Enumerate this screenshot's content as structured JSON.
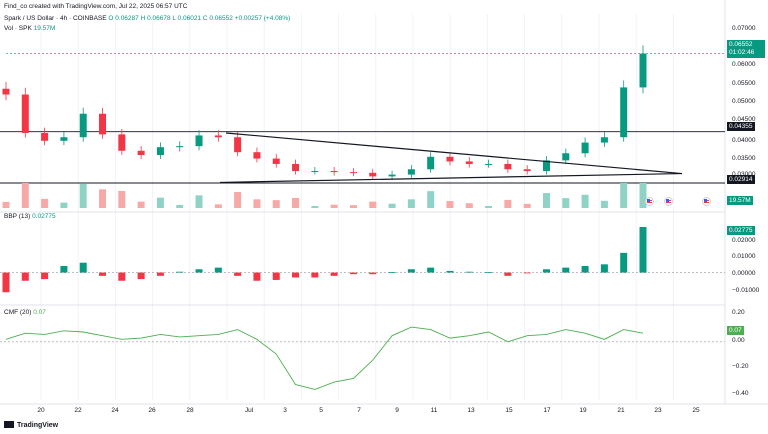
{
  "credit": "Find_co created with TradingView.com, Jul 22, 2025 06:57 UTC",
  "header": {
    "symbol": "Spark / US Dollar · 4h · COINBASE",
    "ohlc": "O 0.06287  H 0.06678  L 0.06021  C 0.06552  +0.00257 (+4.08%)",
    "vol_label": "Vol · SPK",
    "vol_value": "19.57M"
  },
  "price_tag": {
    "price": "0.06552",
    "countdown": "01:02:46"
  },
  "level_tags": {
    "upper": "0.04355",
    "lower": "0.02914"
  },
  "volume_tag": "19.57M",
  "bbp": {
    "label": "BBP (13)",
    "value": "0.02775"
  },
  "cmf": {
    "label": "CMF (20)",
    "value": "0.07"
  },
  "price_axis": [
    "0.07000",
    "0.06000",
    "0.05500",
    "0.05000",
    "0.04500",
    "0.04000",
    "0.03500",
    "0.03000"
  ],
  "bbp_axis": [
    "0.02000",
    "0.01000",
    "0.00000",
    "−0.01000"
  ],
  "cmf_axis": [
    "0.20",
    "0.00",
    "−0.20",
    "−0.40"
  ],
  "x_axis": [
    "20",
    "22",
    "24",
    "26",
    "28",
    "Jul",
    "3",
    "5",
    "7",
    "9",
    "11",
    "13",
    "15",
    "17",
    "19",
    "21",
    "23",
    "25"
  ],
  "brand": "TradingView",
  "colors": {
    "up": "#089981",
    "down": "#f23645",
    "cmf": "#4caf50",
    "line": "#131722"
  },
  "chart_data": [
    {
      "type": "candlestick",
      "title": "Spark / US Dollar · 4h · COINBASE",
      "ylim": [
        0.0283,
        0.0755
      ],
      "series": [
        {
          "name": "SPK",
          "x": [
            "Jun 19",
            "Jun 20",
            "Jun 21",
            "Jun 22",
            "Jun 23",
            "Jun 24",
            "Jun 25",
            "Jun 26",
            "Jun 27",
            "Jun 28",
            "Jun 29",
            "Jun 30",
            "Jul 1",
            "Jul 2",
            "Jul 3",
            "Jul 4",
            "Jul 5",
            "Jul 6",
            "Jul 7",
            "Jul 8",
            "Jul 9",
            "Jul 10",
            "Jul 11",
            "Jul 12",
            "Jul 13",
            "Jul 14",
            "Jul 15",
            "Jul 16",
            "Jul 17",
            "Jul 18",
            "Jul 19",
            "Jul 20",
            "Jul 21",
            "Jul 22"
          ],
          "close": [
            0.054,
            0.0432,
            0.041,
            0.042,
            0.0486,
            0.0428,
            0.0382,
            0.037,
            0.0392,
            0.0395,
            0.0425,
            0.042,
            0.0378,
            0.036,
            0.0345,
            0.0325,
            0.0325,
            0.0322,
            0.032,
            0.031,
            0.0315,
            0.033,
            0.0365,
            0.0352,
            0.0345,
            0.0345,
            0.033,
            0.0325,
            0.0355,
            0.0375,
            0.0405,
            0.042,
            0.056,
            0.0655
          ]
        }
      ],
      "levels": [
        0.04355,
        0.02914
      ]
    },
    {
      "type": "bar",
      "title": "Vol · SPK",
      "series": [
        {
          "name": "Vol · SPK",
          "last": "19.57M"
        }
      ]
    },
    {
      "type": "bar",
      "title": "BBP (13)",
      "ylim": [
        -0.0155,
        0.032
      ],
      "series": [
        {
          "name": "BBP (13)",
          "values": [
            -0.012,
            -0.005,
            -0.004,
            0.004,
            0.006,
            -0.002,
            -0.005,
            -0.004,
            -0.002,
            0.0005,
            0.002,
            0.003,
            -0.002,
            -0.005,
            -0.0045,
            -0.003,
            -0.003,
            -0.002,
            -0.001,
            -0.001,
            0.0003,
            0.002,
            0.003,
            0.001,
            0.0005,
            0.0002,
            -0.002,
            -0.0005,
            0.002,
            0.003,
            0.004,
            0.005,
            0.012,
            0.02775
          ]
        }
      ]
    },
    {
      "type": "line",
      "title": "CMF (20)",
      "ylim": [
        -0.46,
        0.26
      ],
      "series": [
        {
          "name": "CMF (20)",
          "values": [
            0.02,
            0.07,
            0.06,
            0.09,
            0.08,
            0.05,
            0.02,
            0.03,
            0.06,
            0.04,
            0.05,
            0.06,
            0.1,
            0.02,
            -0.1,
            -0.35,
            -0.39,
            -0.33,
            -0.3,
            -0.15,
            0.05,
            0.12,
            0.1,
            0.03,
            0.05,
            0.08,
            0.0,
            0.05,
            0.06,
            0.1,
            0.07,
            0.02,
            0.1,
            0.07
          ]
        }
      ]
    }
  ]
}
